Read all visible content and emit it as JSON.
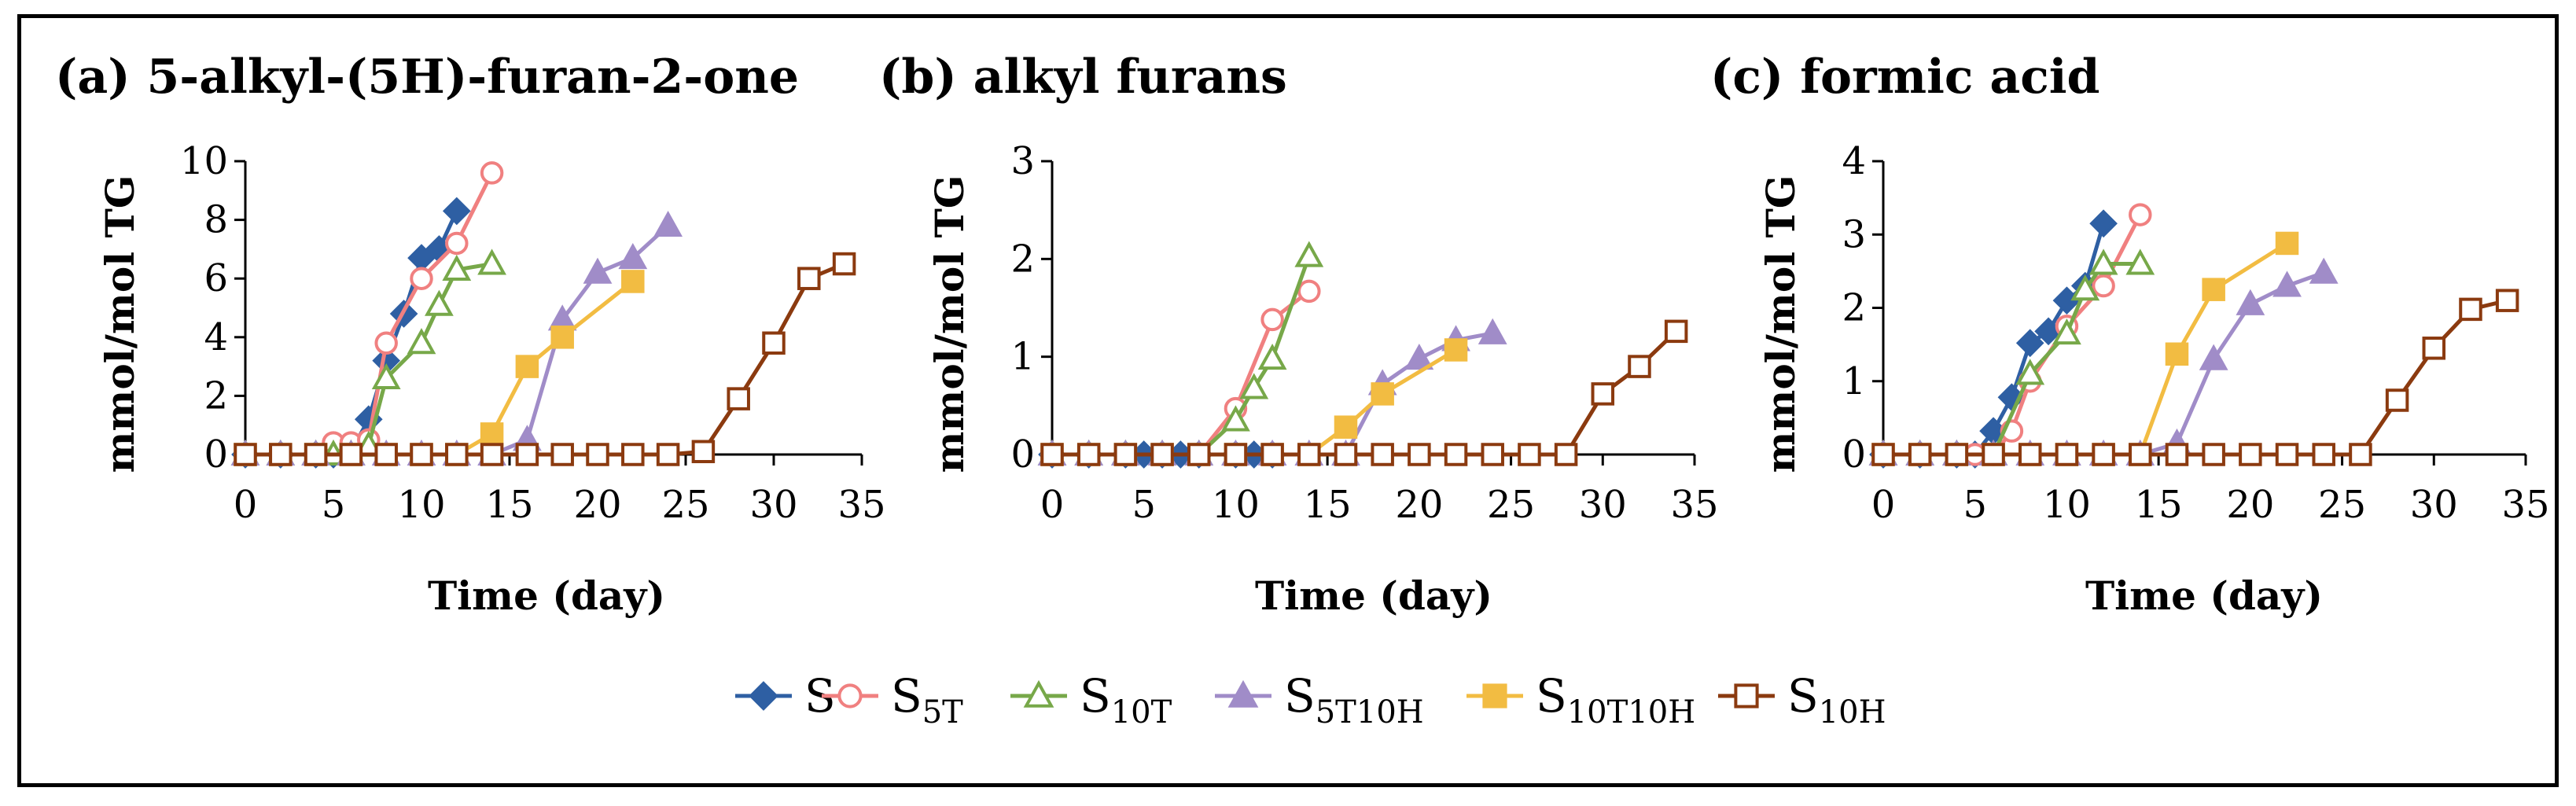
{
  "chart_data": [
    {
      "type": "line",
      "title": "(a) 5-alkyl-(5H)-furan-2-one",
      "xlabel": "Time (day)",
      "ylabel": "mmol/mol TG",
      "xlim": [
        0,
        35
      ],
      "ylim": [
        0,
        10
      ],
      "xticks": [
        "0",
        "5",
        "10",
        "15",
        "20",
        "25",
        "30",
        "35"
      ],
      "yticks": [
        "0",
        "2",
        "4",
        "6",
        "8",
        "10"
      ],
      "series": [
        {
          "name": "S",
          "x": [
            0,
            2,
            4,
            5,
            6,
            7,
            8,
            9,
            10,
            11,
            12
          ],
          "y": [
            0,
            0,
            0,
            0,
            0.1,
            1.2,
            3.2,
            4.8,
            6.7,
            7.0,
            8.3
          ]
        },
        {
          "name": "S5T",
          "x": [
            0,
            2,
            4,
            5,
            6,
            7,
            8,
            10,
            12,
            14
          ],
          "y": [
            0,
            0,
            0,
            0.4,
            0.4,
            0.5,
            3.8,
            6.0,
            7.2,
            9.6
          ]
        },
        {
          "name": "S10T",
          "x": [
            0,
            2,
            4,
            5,
            6,
            7,
            8,
            10,
            11,
            12,
            14
          ],
          "y": [
            0,
            0,
            0,
            0,
            0,
            0.3,
            2.6,
            3.8,
            5.1,
            6.3,
            6.5
          ]
        },
        {
          "name": "S5T10H",
          "x": [
            0,
            2,
            4,
            6,
            8,
            10,
            12,
            14,
            16,
            18,
            20,
            22,
            24
          ],
          "y": [
            0,
            0,
            0,
            0,
            0,
            0,
            0,
            0,
            0.5,
            4.6,
            6.2,
            6.7,
            7.8
          ]
        },
        {
          "name": "S10T10H",
          "x": [
            0,
            2,
            4,
            6,
            8,
            10,
            12,
            14,
            16,
            18,
            22
          ],
          "y": [
            0,
            0,
            0,
            0,
            0,
            0,
            0,
            0.7,
            3.0,
            4.0,
            5.9
          ]
        },
        {
          "name": "S10H",
          "x": [
            0,
            2,
            4,
            6,
            8,
            10,
            12,
            14,
            16,
            18,
            20,
            22,
            24,
            26,
            28,
            30,
            32,
            34
          ],
          "y": [
            0,
            0,
            0,
            0,
            0,
            0,
            0,
            0,
            0,
            0,
            0,
            0,
            0,
            0.1,
            1.9,
            3.8,
            6.0,
            6.5
          ]
        }
      ]
    },
    {
      "type": "line",
      "title": "(b) alkyl furans",
      "xlabel": "Time (day)",
      "ylabel": "mmol/mol TG",
      "xlim": [
        0,
        35
      ],
      "ylim": [
        0,
        3
      ],
      "xticks": [
        "0",
        "5",
        "10",
        "15",
        "20",
        "25",
        "30",
        "35"
      ],
      "yticks": [
        "0",
        "1",
        "2",
        "3"
      ],
      "series": [
        {
          "name": "S",
          "x": [
            0,
            2,
            4,
            5,
            6,
            7,
            8,
            10,
            11,
            12
          ],
          "y": [
            0,
            0,
            0,
            0,
            0,
            0,
            0,
            0,
            0,
            0
          ]
        },
        {
          "name": "S5T",
          "x": [
            0,
            2,
            4,
            6,
            8,
            10,
            12,
            14
          ],
          "y": [
            0,
            0,
            0,
            0,
            0,
            0.47,
            1.38,
            1.67
          ]
        },
        {
          "name": "S10T",
          "x": [
            0,
            2,
            4,
            6,
            8,
            10,
            11,
            12,
            14
          ],
          "y": [
            0,
            0,
            0,
            0,
            0,
            0.35,
            0.68,
            0.98,
            2.03
          ]
        },
        {
          "name": "S5T10H",
          "x": [
            0,
            2,
            4,
            6,
            8,
            10,
            12,
            14,
            16,
            18,
            20,
            22,
            24
          ],
          "y": [
            0,
            0,
            0,
            0,
            0,
            0,
            0,
            0,
            0,
            0.72,
            0.98,
            1.17,
            1.24
          ]
        },
        {
          "name": "S10T10H",
          "x": [
            0,
            2,
            4,
            6,
            8,
            10,
            12,
            14,
            16,
            18,
            22
          ],
          "y": [
            0,
            0,
            0,
            0,
            0,
            0,
            0,
            0,
            0.28,
            0.62,
            1.07
          ]
        },
        {
          "name": "S10H",
          "x": [
            0,
            2,
            4,
            6,
            8,
            10,
            12,
            14,
            16,
            18,
            20,
            22,
            24,
            26,
            28,
            30,
            32,
            34
          ],
          "y": [
            0,
            0,
            0,
            0,
            0,
            0,
            0,
            0,
            0,
            0,
            0,
            0,
            0,
            0,
            0,
            0.62,
            0.9,
            1.26
          ]
        }
      ]
    },
    {
      "type": "line",
      "title": "(c) formic acid",
      "xlabel": "Time (day)",
      "ylabel": "mmol/mol TG",
      "xlim": [
        0,
        35
      ],
      "ylim": [
        0,
        4
      ],
      "xticks": [
        "0",
        "5",
        "10",
        "15",
        "20",
        "25",
        "30",
        "35"
      ],
      "yticks": [
        "0",
        "1",
        "2",
        "3",
        "4"
      ],
      "series": [
        {
          "name": "S",
          "x": [
            0,
            2,
            4,
            5,
            6,
            7,
            8,
            9,
            10,
            11,
            12
          ],
          "y": [
            0,
            0,
            0,
            0,
            0.32,
            0.78,
            1.52,
            1.68,
            2.1,
            2.3,
            3.15
          ]
        },
        {
          "name": "S5T",
          "x": [
            0,
            2,
            4,
            5,
            6,
            7,
            8,
            10,
            12,
            14
          ],
          "y": [
            0,
            0,
            0,
            0,
            0,
            0.32,
            1.0,
            1.75,
            2.3,
            3.27
          ]
        },
        {
          "name": "S10T",
          "x": [
            0,
            2,
            4,
            6,
            8,
            10,
            11,
            12,
            14
          ],
          "y": [
            0,
            0,
            0,
            0,
            1.1,
            1.65,
            2.25,
            2.6,
            2.6
          ]
        },
        {
          "name": "S5T10H",
          "x": [
            0,
            2,
            4,
            6,
            8,
            10,
            12,
            14,
            16,
            18,
            20,
            22,
            24
          ],
          "y": [
            0,
            0,
            0,
            0,
            0,
            0,
            0,
            0,
            0.15,
            1.3,
            2.05,
            2.3,
            2.48
          ]
        },
        {
          "name": "S10T10H",
          "x": [
            0,
            2,
            4,
            6,
            8,
            10,
            12,
            14,
            16,
            18,
            22
          ],
          "y": [
            0,
            0,
            0,
            0,
            0,
            0,
            0,
            0,
            1.37,
            2.25,
            2.88
          ]
        },
        {
          "name": "S10H",
          "x": [
            0,
            2,
            4,
            6,
            8,
            10,
            12,
            14,
            16,
            18,
            20,
            22,
            24,
            26,
            28,
            30,
            32,
            34
          ],
          "y": [
            0,
            0,
            0,
            0,
            0,
            0,
            0,
            0,
            0,
            0,
            0,
            0,
            0,
            0,
            0.74,
            1.45,
            1.98,
            2.1
          ]
        }
      ]
    }
  ],
  "legend": [
    {
      "main": "S",
      "sub": "",
      "marker": "diamond",
      "color": "#2e5fa3"
    },
    {
      "main": "S",
      "sub": "5T",
      "marker": "circle-open",
      "color": "#f08080"
    },
    {
      "main": "S",
      "sub": "10T",
      "marker": "triangle-open",
      "color": "#77a849"
    },
    {
      "main": "S",
      "sub": "5T10H",
      "marker": "triangle",
      "color": "#a08cc8"
    },
    {
      "main": "S",
      "sub": "10T10H",
      "marker": "square",
      "color": "#f2bc42"
    },
    {
      "main": "S",
      "sub": "10H",
      "marker": "square-open",
      "color": "#8b3a0f"
    }
  ]
}
